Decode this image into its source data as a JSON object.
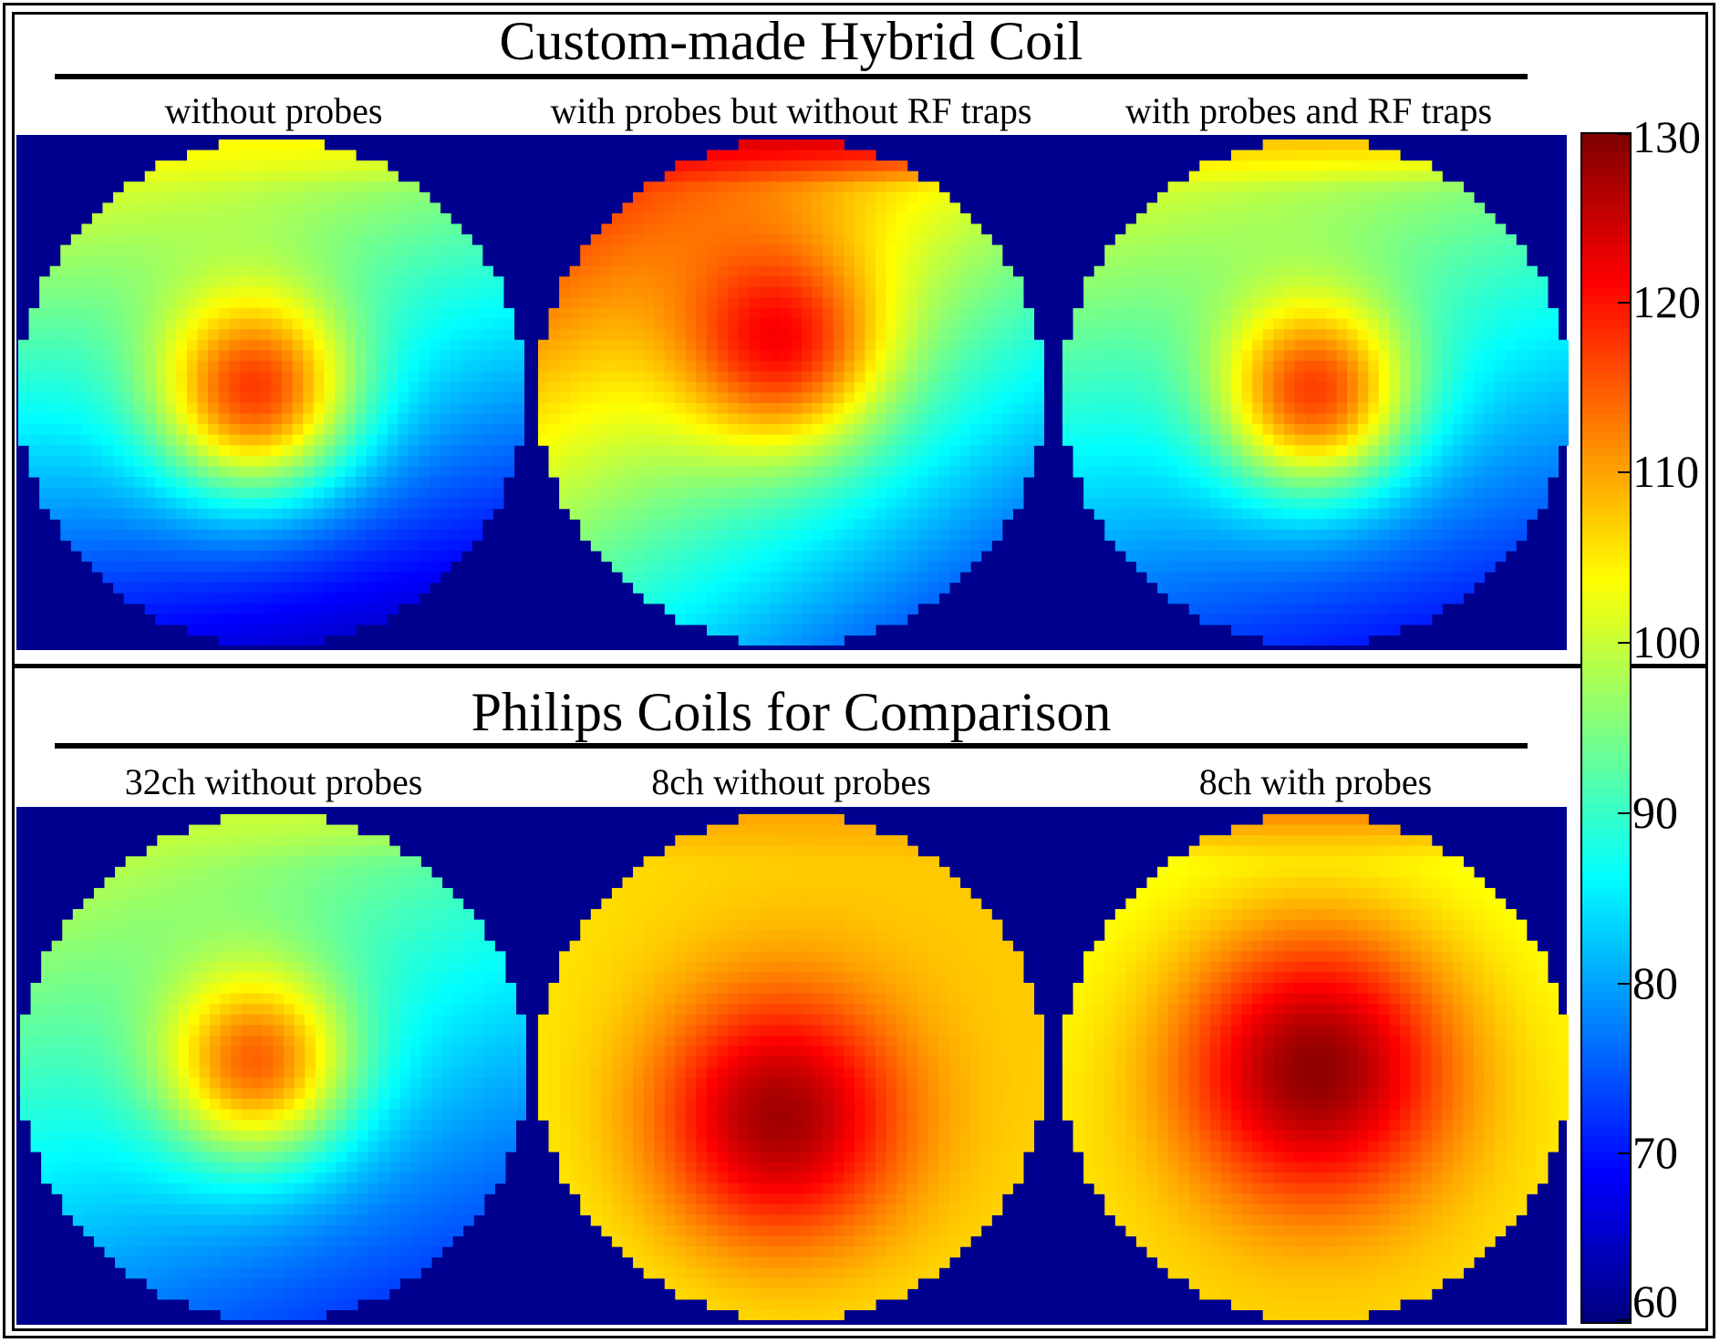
{
  "chart_data": {
    "type": "heatmap",
    "colormap": "jet",
    "background_color": "#00008f",
    "value_range": [
      60,
      130
    ],
    "colorbar": {
      "ticks": [
        130,
        120,
        110,
        100,
        90,
        80,
        70,
        60
      ],
      "location": "right"
    },
    "sections": [
      {
        "title": "Custom-made Hybrid Coil",
        "panels": [
          {
            "title": "without probes",
            "map_type": "circular",
            "grid": 48,
            "base_value": 84,
            "gradient": [
              -4,
              -18
            ],
            "top_edge_value": 104,
            "hotspot": {
              "center": [
                -0.06,
                0.02
              ],
              "peak": 117,
              "width": 0.4
            }
          },
          {
            "title": "with probes but without RF traps",
            "map_type": "circular",
            "grid": 48,
            "base_value": 96,
            "gradient": [
              -11,
              -17
            ],
            "top_edge_value": 124,
            "hotspot": {
              "center": [
                -0.02,
                -0.16
              ],
              "peak": 118,
              "width": 0.4
            }
          },
          {
            "title": "with probes and RF traps",
            "map_type": "circular",
            "grid": 48,
            "base_value": 86,
            "gradient": [
              -4,
              -15
            ],
            "top_edge_value": 108,
            "hotspot": {
              "center": [
                0.0,
                0.02
              ],
              "peak": 117,
              "width": 0.38
            }
          }
        ]
      },
      {
        "title": "Philips Coils for Comparison",
        "panels": [
          {
            "title": "32ch without probes",
            "map_type": "circular",
            "grid": 48,
            "base_value": 86,
            "gradient": [
              -5,
              -12
            ],
            "top_edge_value": 100,
            "hotspot": {
              "center": [
                -0.06,
                0.0
              ],
              "peak": 114,
              "width": 0.38
            }
          },
          {
            "title": "8ch without probes",
            "map_type": "circular",
            "grid": 48,
            "base_value": 106,
            "gradient": [
              1,
              -1
            ],
            "top_edge_value": 110,
            "hotspot": {
              "center": [
                -0.05,
                0.2
              ],
              "peak": 128,
              "width": 0.5
            }
          },
          {
            "title": "8ch with probes",
            "map_type": "circular",
            "grid": 48,
            "base_value": 104,
            "gradient": [
              0,
              2
            ],
            "top_edge_value": 112,
            "hotspot": {
              "center": [
                0.0,
                0.0
              ],
              "peak": 129,
              "width": 0.55
            }
          }
        ]
      }
    ]
  }
}
